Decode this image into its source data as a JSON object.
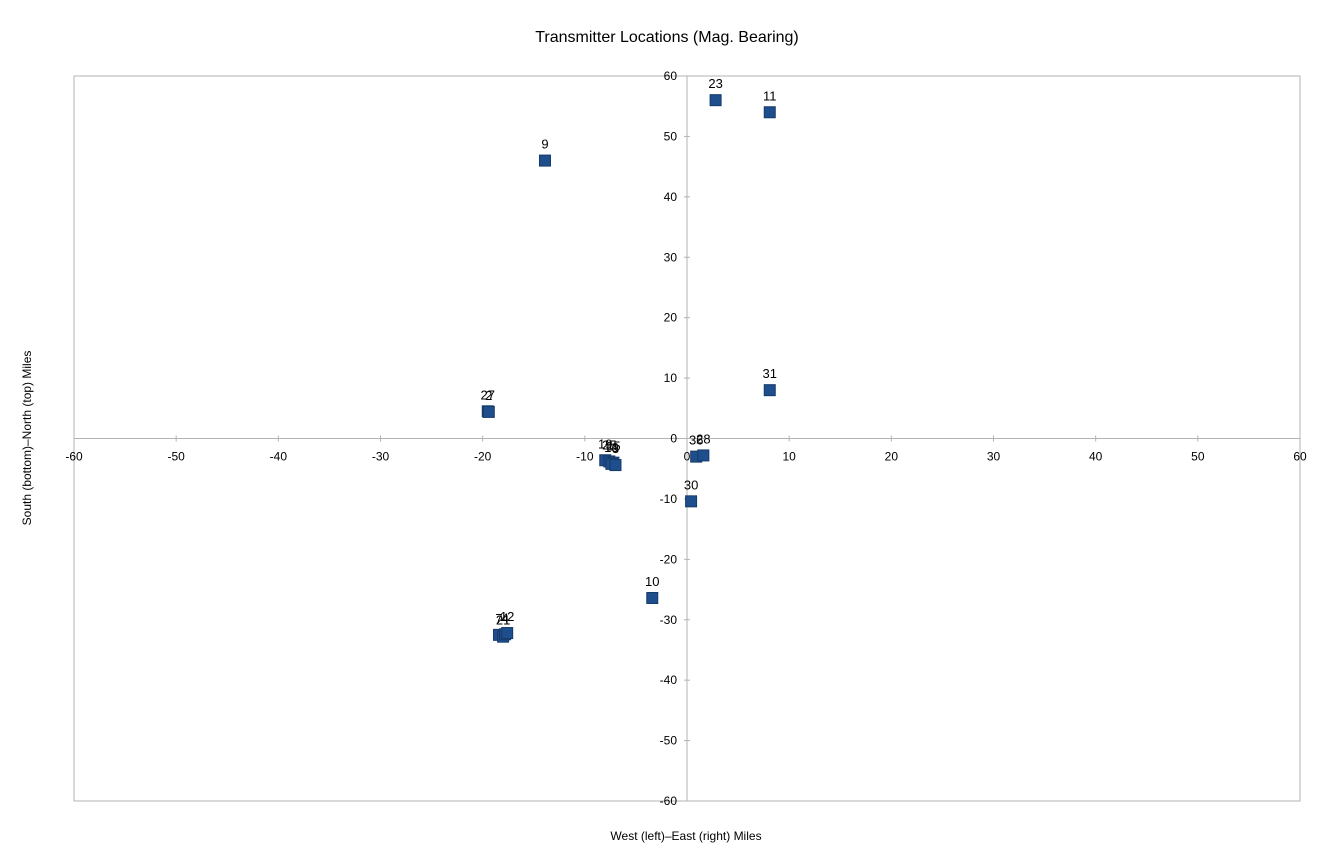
{
  "chart_data": {
    "type": "scatter",
    "title": "Transmitter Locations (Mag. Bearing)",
    "xlabel": "West (left)–East (right) Miles",
    "ylabel": "South (bottom)–North (top) Miles",
    "xlim": [
      -60,
      60
    ],
    "ylim": [
      -60,
      60
    ],
    "xticks": [
      -60,
      -50,
      -40,
      -30,
      -20,
      -10,
      0,
      10,
      20,
      30,
      40,
      50,
      60
    ],
    "yticks": [
      60,
      50,
      40,
      30,
      20,
      10,
      0,
      -10,
      -20,
      -30,
      -40,
      -50,
      -60
    ],
    "marker_color": "#1F4E8C",
    "points": [
      {
        "label": "23",
        "x": 2.8,
        "y": 56
      },
      {
        "label": "11",
        "x": 8.1,
        "y": 54
      },
      {
        "label": "9",
        "x": -13.9,
        "y": 46
      },
      {
        "label": "31",
        "x": 8.1,
        "y": 8
      },
      {
        "label": "27",
        "x": -19.5,
        "y": 4.5
      },
      {
        "label": "2",
        "x": -19.4,
        "y": 4.4
      },
      {
        "label": "19",
        "x": -8.0,
        "y": -3.6
      },
      {
        "label": "25",
        "x": -7.6,
        "y": -3.8
      },
      {
        "label": "15",
        "x": -7.2,
        "y": -4.0
      },
      {
        "label": "16",
        "x": -7.4,
        "y": -4.2
      },
      {
        "label": "3",
        "x": -7.0,
        "y": -4.4
      },
      {
        "label": "36",
        "x": 0.9,
        "y": -3.0
      },
      {
        "label": "28",
        "x": 1.6,
        "y": -2.8
      },
      {
        "label": "30",
        "x": 0.4,
        "y": -10.4
      },
      {
        "label": "10",
        "x": -3.4,
        "y": -26.4
      },
      {
        "label": "7",
        "x": -18.4,
        "y": -32.5
      },
      {
        "label": "21",
        "x": -18.0,
        "y": -32.8
      },
      {
        "label": "4",
        "x": -17.8,
        "y": -32.4
      },
      {
        "label": "12",
        "x": -17.6,
        "y": -32.2
      }
    ]
  }
}
